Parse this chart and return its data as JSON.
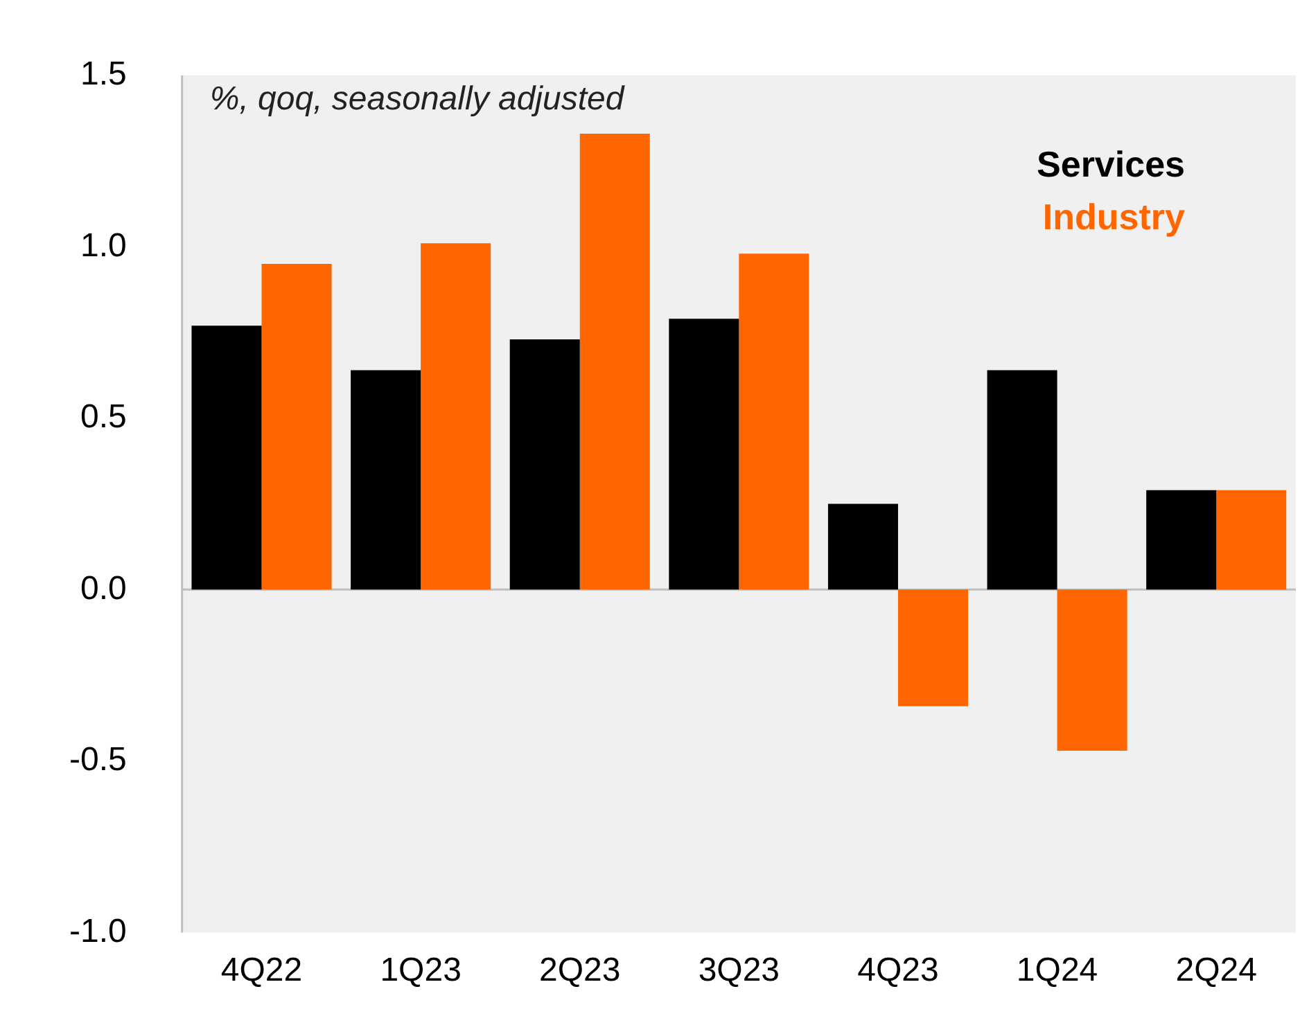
{
  "chart_data": {
    "type": "bar",
    "categories": [
      "4Q22",
      "1Q23",
      "2Q23",
      "3Q23",
      "4Q23",
      "1Q24",
      "2Q24"
    ],
    "series": [
      {
        "name": "Services",
        "color": "#000000",
        "values": [
          0.77,
          0.64,
          0.73,
          0.79,
          0.25,
          0.64,
          0.29
        ]
      },
      {
        "name": "Industry",
        "color": "#ff6600",
        "values": [
          0.95,
          1.01,
          1.33,
          0.98,
          -0.34,
          -0.47,
          0.29
        ]
      }
    ],
    "ylim": [
      -1.0,
      1.5
    ],
    "yticks": [
      {
        "value": -1,
        "label": "-1.0"
      },
      {
        "value": -0.5,
        "label": "-0.5"
      },
      {
        "value": 0,
        "label": "0.0"
      },
      {
        "value": 0.5,
        "label": "0.5"
      },
      {
        "value": 1,
        "label": "1.0"
      },
      {
        "value": 1.5,
        "label": "1.5"
      }
    ],
    "annotations": [
      "%, qoq, seasonally adjusted"
    ],
    "ref_lines": [
      {
        "axis": "y",
        "value": 0,
        "color": "#bfbfbf"
      }
    ],
    "legend": "top right"
  }
}
